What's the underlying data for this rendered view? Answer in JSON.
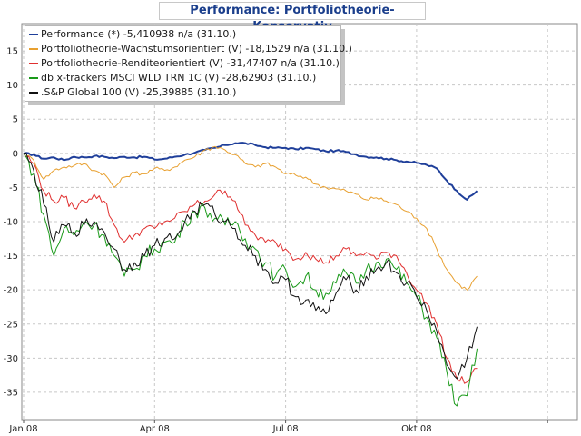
{
  "chart_data": {
    "type": "line",
    "title": "Performance: Portfoliotheorie-Konservativ",
    "xlabel": "",
    "ylabel": "",
    "x_ticks": [
      "Jan 08",
      "Apr 08",
      "Jul 08",
      "Okt 08"
    ],
    "y_ticks": [
      15,
      10,
      5,
      0,
      -5,
      -10,
      -15,
      -20,
      -25,
      -30,
      -35
    ],
    "ylim": [
      -39,
      19
    ],
    "grid": true,
    "legend_position": "top-left",
    "x_unit": "weeks from 1 Jan 2008",
    "series": [
      {
        "name": "Performance (*) -5,410938 n/a (31.10.)",
        "color": "#1f3f9a",
        "values": [
          0,
          -0.2,
          -0.8,
          -0.6,
          -1.0,
          -0.5,
          -0.6,
          -0.4,
          -0.5,
          -0.7,
          -0.5,
          -0.6,
          -0.5,
          -0.9,
          -0.8,
          -0.5,
          -0.2,
          0.1,
          0.5,
          0.8,
          1.2,
          1.5,
          1.5,
          1.2,
          0.9,
          0.8,
          0.8,
          0.6,
          0.8,
          0.6,
          0.3,
          0.4,
          0.2,
          -0.2,
          -0.5,
          -0.6,
          -0.8,
          -1.0,
          -1.2,
          -1.4,
          -1.7,
          -2.2,
          -4.0,
          -5.5,
          -6.8,
          -5.5
        ]
      },
      {
        "name": "Portfoliotheorie-Wachstumsorientiert (V) -18,1529 n/a (31.10.)",
        "color": "#e8a030",
        "values": [
          0,
          -1.0,
          -3.8,
          -2.5,
          -2.0,
          -1.8,
          -1.5,
          -2.5,
          -3.0,
          -5.0,
          -3.5,
          -2.8,
          -3.0,
          -2.2,
          -2.5,
          -2.0,
          -1.0,
          -0.5,
          0.5,
          1.0,
          0.5,
          -0.2,
          -1.5,
          -2.0,
          -1.5,
          -2.0,
          -3.0,
          -3.2,
          -3.5,
          -4.5,
          -5.0,
          -5.2,
          -5.5,
          -6.0,
          -6.8,
          -6.5,
          -7.0,
          -7.5,
          -8.5,
          -9.5,
          -11,
          -14,
          -17,
          -19,
          -20,
          -18
        ]
      },
      {
        "name": "Portfoliotheorie-Renditeorientiert (V) -31,47407 n/a (31.10.)",
        "color": "#e03030",
        "values": [
          0,
          -1.5,
          -5.5,
          -7.0,
          -6.5,
          -8.0,
          -7.0,
          -6.0,
          -7.0,
          -10.5,
          -13,
          -12,
          -11,
          -11,
          -10,
          -9.5,
          -8.5,
          -7.5,
          -7.0,
          -6.0,
          -5.5,
          -7.0,
          -10.5,
          -12,
          -13,
          -13,
          -14,
          -15.5,
          -14.5,
          -15.5,
          -16,
          -15,
          -14,
          -15,
          -14.5,
          -15.5,
          -14.5,
          -15,
          -17.5,
          -20,
          -22,
          -25,
          -30,
          -33,
          -33.5,
          -31.5
        ]
      },
      {
        "name": "db x-trackers MSCI WLD TRN 1C (V) -28,62903 (31.10.)",
        "color": "#1a9a1a",
        "values": [
          0,
          -3.0,
          -9.0,
          -15.0,
          -11,
          -12,
          -10,
          -10.5,
          -12,
          -15,
          -18,
          -17,
          -15,
          -14,
          -13,
          -13,
          -10,
          -8.5,
          -8.0,
          -9.5,
          -10.5,
          -10,
          -12.5,
          -14,
          -16,
          -18,
          -17,
          -19.5,
          -18,
          -20,
          -20.5,
          -19,
          -17.5,
          -19,
          -17,
          -16,
          -15.5,
          -17,
          -19,
          -21,
          -24,
          -27,
          -32,
          -37,
          -35.5,
          -28.6
        ]
      },
      {
        "name": ".S&P Global 100 (V) -25,39885 (31.10.)",
        "color": "#111111",
        "values": [
          0,
          -2.5,
          -7.5,
          -13,
          -10.5,
          -11.5,
          -10.5,
          -10,
          -11.5,
          -14,
          -17,
          -16,
          -15,
          -13.5,
          -12.5,
          -12.5,
          -10,
          -8.5,
          -7.5,
          -9,
          -10,
          -11,
          -13.5,
          -15,
          -17,
          -19,
          -18.5,
          -21,
          -21.5,
          -23,
          -23.5,
          -20.5,
          -18.5,
          -20,
          -18,
          -17,
          -16,
          -17.5,
          -19,
          -21,
          -23,
          -26,
          -31,
          -33,
          -30,
          -25.4
        ]
      }
    ]
  }
}
